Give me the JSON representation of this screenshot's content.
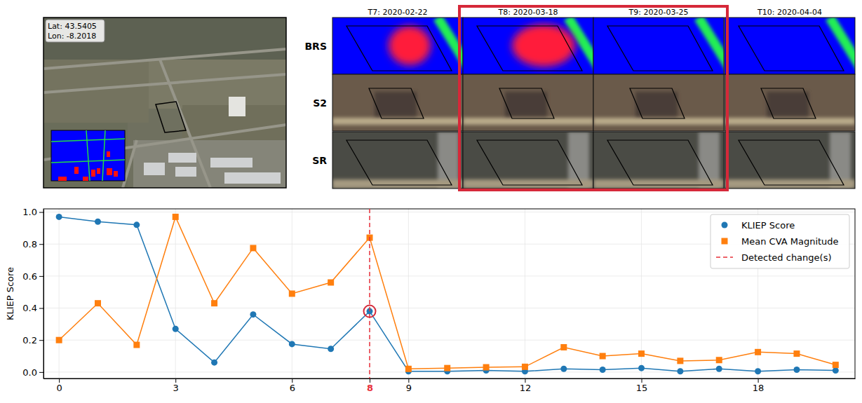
{
  "chart_data": {
    "type": "line",
    "y_label": "KLIEP Score",
    "x": [
      0,
      1,
      2,
      3,
      4,
      5,
      6,
      7,
      8,
      9,
      10,
      11,
      12,
      13,
      14,
      15,
      16,
      17,
      18,
      19,
      20
    ],
    "series": [
      {
        "name": "KLIEP Score",
        "color": "#1f77b4",
        "marker": "circle",
        "values": [
          0.97,
          0.94,
          0.92,
          0.27,
          0.06,
          0.36,
          0.175,
          0.145,
          0.38,
          0.005,
          0.005,
          0.01,
          0.005,
          0.02,
          0.015,
          0.025,
          0.005,
          0.02,
          0.005,
          0.015,
          0.01
        ]
      },
      {
        "name": "Mean CVA Magnitude",
        "color": "#ff7f0e",
        "marker": "square",
        "values": [
          0.2,
          0.43,
          0.17,
          0.97,
          0.43,
          0.775,
          0.49,
          0.56,
          0.84,
          0.02,
          0.025,
          0.03,
          0.033,
          0.155,
          0.1,
          0.115,
          0.07,
          0.075,
          0.125,
          0.115,
          0.045
        ]
      }
    ],
    "vlines": [
      {
        "name": "Detected change(s)",
        "x": 8,
        "color": "#e8303a",
        "line_style": "dashed"
      }
    ],
    "xlim": [
      -0.4,
      20.5
    ],
    "xticks": [
      0,
      3,
      6,
      8,
      9,
      12,
      15,
      18
    ],
    "ylim": [
      -0.04,
      1.02
    ],
    "yticks": [
      {
        "value": 0,
        "label": "0.0"
      },
      {
        "value": 0.2,
        "label": "0.2"
      },
      {
        "value": 0.4,
        "label": "0.4"
      },
      {
        "value": 0.6,
        "label": "0.6"
      },
      {
        "value": 0.8,
        "label": "0.8"
      },
      {
        "value": 1,
        "label": "1.0"
      }
    ],
    "grid": true,
    "legend": "upper right"
  },
  "panel": {
    "lat_label": "Lat: 43.5405",
    "lon_label": "Lon: -8.2018",
    "rows": [
      "BRS",
      "S2",
      "SR"
    ],
    "columns": [
      "T7: 2020-02-22",
      "T8: 2020-03-18",
      "T9: 2020-03-25",
      "T10: 2020-04-04"
    ],
    "highlight_columns": [
      1,
      2
    ]
  }
}
